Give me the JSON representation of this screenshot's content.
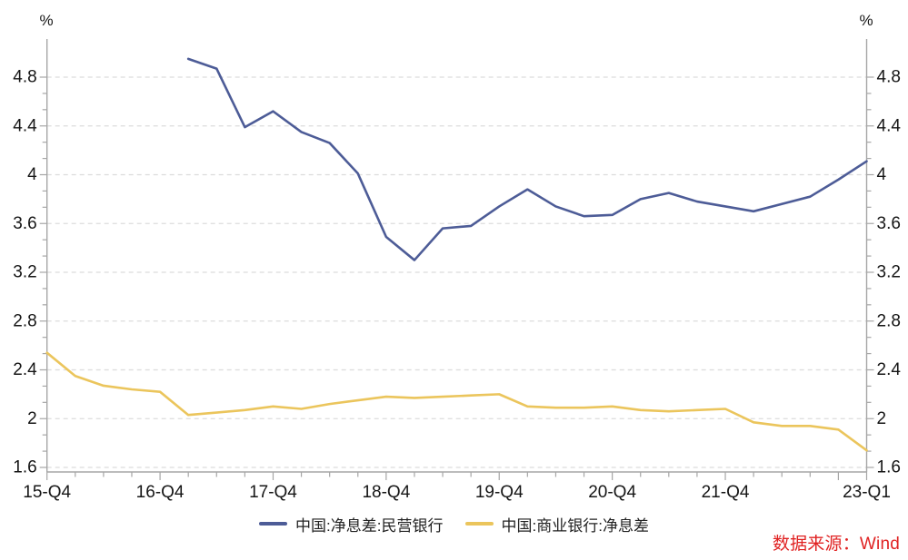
{
  "chart": {
    "unit_label_left": "%",
    "unit_label_right": "%",
    "source_note": "数据来源：Wind",
    "colors": {
      "private_banks_line": "#4d5c97",
      "commercial_banks_line": "#ebc55c",
      "source_text": "#e02222",
      "axis": "#a6a6a6",
      "gridline": "#dcdcdc",
      "label_text": "#161616",
      "background": "#ffffff"
    },
    "legend": [
      {
        "label": "中国:净息差:民营银行",
        "color": "#4d5c97"
      },
      {
        "label": "中国:商业银行:净息差",
        "color": "#ebc55c"
      }
    ]
  },
  "chart_data": {
    "type": "line",
    "title": "",
    "xlabel": "",
    "ylabel": "%",
    "grid": "horizontal-dashed",
    "legend_position": "bottom-center",
    "y_axis_sides": "both",
    "ylim": [
      1.6,
      5.15
    ],
    "categories": [
      "15-Q4",
      "16-Q1",
      "16-Q2",
      "16-Q3",
      "16-Q4",
      "17-Q1",
      "17-Q2",
      "17-Q3",
      "17-Q4",
      "18-Q1",
      "18-Q2",
      "18-Q3",
      "18-Q4",
      "19-Q1",
      "19-Q2",
      "19-Q3",
      "19-Q4",
      "20-Q1",
      "20-Q2",
      "20-Q3",
      "20-Q4",
      "21-Q1",
      "21-Q2",
      "21-Q3",
      "21-Q4",
      "22-Q1",
      "22-Q2",
      "22-Q3",
      "22-Q4",
      "23-Q1"
    ],
    "series": [
      {
        "name": "中国:净息差:民营银行",
        "color": "#4d5c97",
        "values": [
          null,
          null,
          null,
          null,
          null,
          4.95,
          4.87,
          4.39,
          4.52,
          4.35,
          4.26,
          4.01,
          3.49,
          3.3,
          3.56,
          3.58,
          3.74,
          3.88,
          3.74,
          3.66,
          3.67,
          3.8,
          3.85,
          3.78,
          3.74,
          3.7,
          3.76,
          3.82,
          3.96,
          4.11
        ]
      },
      {
        "name": "中国:商业银行:净息差",
        "color": "#ebc55c",
        "values": [
          2.54,
          2.35,
          2.27,
          2.24,
          2.22,
          2.03,
          2.05,
          2.07,
          2.1,
          2.08,
          2.12,
          2.15,
          2.18,
          2.17,
          2.18,
          2.19,
          2.2,
          2.1,
          2.09,
          2.09,
          2.1,
          2.07,
          2.06,
          2.07,
          2.08,
          1.97,
          1.94,
          1.94,
          1.91,
          1.74
        ]
      }
    ],
    "x_major_ticks": [
      {
        "index": 0,
        "label": "15-Q4"
      },
      {
        "index": 4,
        "label": "16-Q4"
      },
      {
        "index": 8,
        "label": "17-Q4"
      },
      {
        "index": 12,
        "label": "18-Q4"
      },
      {
        "index": 16,
        "label": "19-Q4"
      },
      {
        "index": 20,
        "label": "20-Q4"
      },
      {
        "index": 24,
        "label": "21-Q4"
      },
      {
        "index": 29,
        "label": "23-Q1"
      }
    ],
    "x_unlabeled_major_tick_indices": [
      28
    ],
    "y_ticks": [
      {
        "value": 1.6,
        "label": "1.6"
      },
      {
        "value": 2.0,
        "label": "2"
      },
      {
        "value": 2.4,
        "label": "2.4"
      },
      {
        "value": 2.8,
        "label": "2.8"
      },
      {
        "value": 3.2,
        "label": "3.2"
      },
      {
        "value": 3.6,
        "label": "3.6"
      },
      {
        "value": 4.0,
        "label": "4"
      },
      {
        "value": 4.4,
        "label": "4.4"
      },
      {
        "value": 4.8,
        "label": "4.8"
      }
    ],
    "y_minor_divisions_between_majors": 3
  }
}
